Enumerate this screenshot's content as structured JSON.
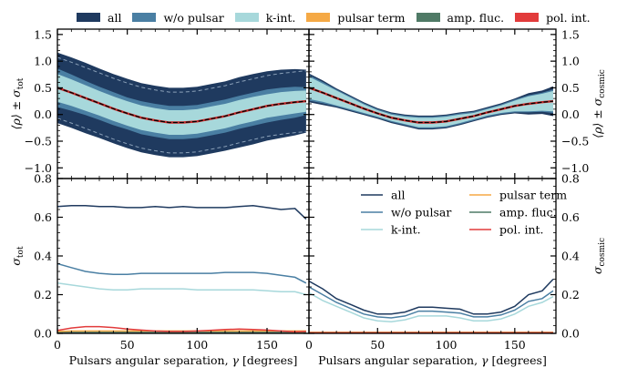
{
  "colors": {
    "all": "#1f3a5f",
    "wo_pulsar": "#4a7fa3",
    "k_int": "#a7d8db",
    "pulsar_term": "#f5a945",
    "amp_fluc": "#4f7a66",
    "pol_int": "#e23b3b",
    "mean": "#000000",
    "hd": "#cc2b2b"
  },
  "legend_top": [
    {
      "key": "all",
      "label": "all"
    },
    {
      "key": "wo_pulsar",
      "label": "w/o pulsar"
    },
    {
      "key": "k_int",
      "label": "k-int."
    },
    {
      "key": "pulsar_term",
      "label": "pulsar term"
    },
    {
      "key": "amp_fluc",
      "label": "amp. fluc."
    },
    {
      "key": "pol_int",
      "label": "pol. int."
    }
  ],
  "legend_inner": [
    {
      "key": "all",
      "label": "all"
    },
    {
      "key": "wo_pulsar",
      "label": "w/o pulsar"
    },
    {
      "key": "k_int",
      "label": "k-int."
    },
    {
      "key": "pulsar_term",
      "label": "pulsar term"
    },
    {
      "key": "amp_fluc",
      "label": "amp. fluc."
    },
    {
      "key": "pol_int",
      "label": "pol. int."
    }
  ],
  "chart_data": [
    {
      "id": "top-left",
      "type": "area",
      "ylabel": "⟨ρ⟩ ± σ_tot",
      "xlim": [
        0,
        180
      ],
      "ylim": [
        -1.2,
        1.6
      ],
      "yticks": [
        -1.0,
        -0.5,
        0.0,
        0.5,
        1.0,
        1.5
      ],
      "ytick_labels": [
        "−1.0",
        "−0.5",
        "0.0",
        "0.5",
        "1.0",
        "1.5"
      ],
      "x": [
        0,
        10,
        20,
        30,
        40,
        50,
        60,
        70,
        80,
        90,
        100,
        110,
        120,
        130,
        140,
        150,
        160,
        170,
        178
      ],
      "mean": [
        0.5,
        0.41,
        0.31,
        0.21,
        0.11,
        0.02,
        -0.06,
        -0.11,
        -0.15,
        -0.15,
        -0.13,
        -0.08,
        -0.03,
        0.04,
        0.1,
        0.16,
        0.2,
        0.23,
        0.25
      ],
      "series": [
        {
          "name": "all",
          "sigma": [
            0.66,
            0.66,
            0.66,
            0.65,
            0.65,
            0.65,
            0.65,
            0.65,
            0.65,
            0.65,
            0.65,
            0.65,
            0.65,
            0.66,
            0.66,
            0.65,
            0.64,
            0.62,
            0.59
          ]
        },
        {
          "name": "w/o pulsar",
          "sigma": [
            0.36,
            0.34,
            0.32,
            0.31,
            0.31,
            0.3,
            0.31,
            0.31,
            0.31,
            0.31,
            0.31,
            0.31,
            0.31,
            0.31,
            0.31,
            0.31,
            0.3,
            0.29,
            0.26
          ]
        },
        {
          "name": "k-int.",
          "sigma": [
            0.26,
            0.25,
            0.24,
            0.23,
            0.23,
            0.23,
            0.23,
            0.23,
            0.23,
            0.23,
            0.23,
            0.23,
            0.23,
            0.23,
            0.23,
            0.22,
            0.22,
            0.21,
            0.2
          ]
        }
      ]
    },
    {
      "id": "top-right",
      "type": "area",
      "ylabel": "⟨ρ⟩ ± σ_cosmic",
      "xlim": [
        0,
        180
      ],
      "ylim": [
        -1.2,
        1.6
      ],
      "yticks": [
        -1.0,
        -0.5,
        0.0,
        0.5,
        1.0,
        1.5
      ],
      "ytick_labels": [
        "−1.0",
        "−0.5",
        "0.0",
        "0.5",
        "1.0",
        "1.5"
      ],
      "x": [
        0,
        10,
        20,
        30,
        40,
        50,
        60,
        70,
        80,
        90,
        100,
        110,
        120,
        130,
        140,
        150,
        160,
        170,
        178
      ],
      "mean": [
        0.5,
        0.41,
        0.31,
        0.21,
        0.11,
        0.02,
        -0.06,
        -0.11,
        -0.15,
        -0.15,
        -0.13,
        -0.08,
        -0.03,
        0.04,
        0.1,
        0.16,
        0.2,
        0.23,
        0.25
      ],
      "series": [
        {
          "name": "all",
          "sigma": [
            0.27,
            0.23,
            0.18,
            0.15,
            0.12,
            0.1,
            0.1,
            0.11,
            0.13,
            0.13,
            0.13,
            0.12,
            0.1,
            0.1,
            0.11,
            0.14,
            0.2,
            0.22,
            0.28
          ]
        },
        {
          "name": "w/o pulsar",
          "sigma": [
            0.24,
            0.2,
            0.16,
            0.13,
            0.1,
            0.08,
            0.08,
            0.09,
            0.11,
            0.11,
            0.11,
            0.1,
            0.08,
            0.08,
            0.09,
            0.12,
            0.16,
            0.18,
            0.22
          ]
        },
        {
          "name": "k-int.",
          "sigma": [
            0.21,
            0.17,
            0.14,
            0.11,
            0.08,
            0.06,
            0.06,
            0.07,
            0.09,
            0.09,
            0.09,
            0.08,
            0.06,
            0.06,
            0.07,
            0.1,
            0.14,
            0.16,
            0.19
          ]
        }
      ]
    },
    {
      "id": "bottom-left",
      "type": "line",
      "ylabel": "σ_tot",
      "xlabel": "Pulsars angular separation, γ [degrees]",
      "xlim": [
        0,
        180
      ],
      "ylim": [
        0.0,
        0.8
      ],
      "yticks": [
        0.0,
        0.2,
        0.4,
        0.6,
        0.8
      ],
      "ytick_labels": [
        "0.0",
        "0.2",
        "0.4",
        "0.6",
        "0.8"
      ],
      "xticks": [
        0,
        50,
        100,
        150
      ],
      "xtick_labels": [
        "0",
        "50",
        "100",
        "150"
      ],
      "x": [
        0,
        10,
        20,
        30,
        40,
        50,
        60,
        70,
        80,
        90,
        100,
        110,
        120,
        130,
        140,
        150,
        160,
        170,
        178
      ],
      "series": [
        {
          "name": "all",
          "values": [
            0.655,
            0.66,
            0.66,
            0.655,
            0.655,
            0.65,
            0.65,
            0.655,
            0.65,
            0.655,
            0.65,
            0.65,
            0.65,
            0.655,
            0.66,
            0.65,
            0.64,
            0.645,
            0.59
          ]
        },
        {
          "name": "w/o pulsar",
          "values": [
            0.36,
            0.34,
            0.32,
            0.31,
            0.305,
            0.305,
            0.31,
            0.31,
            0.31,
            0.31,
            0.31,
            0.31,
            0.315,
            0.315,
            0.315,
            0.31,
            0.3,
            0.29,
            0.26
          ]
        },
        {
          "name": "k-int.",
          "values": [
            0.26,
            0.25,
            0.24,
            0.23,
            0.225,
            0.225,
            0.23,
            0.23,
            0.23,
            0.23,
            0.225,
            0.225,
            0.225,
            0.225,
            0.225,
            0.22,
            0.215,
            0.215,
            0.2
          ]
        },
        {
          "name": "amp. fluc.",
          "values": [
            0.005,
            0.005,
            0.005,
            0.005,
            0.005,
            0.005,
            0.005,
            0.005,
            0.005,
            0.005,
            0.005,
            0.005,
            0.005,
            0.005,
            0.005,
            0.005,
            0.005,
            0.005,
            0.005
          ]
        },
        {
          "name": "pulsar term",
          "values": [
            0.01,
            0.012,
            0.012,
            0.012,
            0.012,
            0.012,
            0.012,
            0.012,
            0.012,
            0.012,
            0.012,
            0.012,
            0.012,
            0.012,
            0.012,
            0.012,
            0.012,
            0.012,
            0.012
          ]
        },
        {
          "name": "pol. int.",
          "values": [
            0.015,
            0.028,
            0.035,
            0.035,
            0.03,
            0.022,
            0.017,
            0.012,
            0.01,
            0.01,
            0.012,
            0.016,
            0.02,
            0.022,
            0.02,
            0.017,
            0.012,
            0.008,
            0.01
          ]
        }
      ]
    },
    {
      "id": "bottom-right",
      "type": "line",
      "ylabel": "σ_cosmic",
      "xlabel": "Pulsars angular separation, γ [degrees]",
      "xlim": [
        0,
        180
      ],
      "ylim": [
        0.0,
        0.8
      ],
      "yticks": [
        0.0,
        0.2,
        0.4,
        0.6,
        0.8
      ],
      "ytick_labels": [
        "0.0",
        "0.2",
        "0.4",
        "0.6",
        "0.8"
      ],
      "xticks": [
        0,
        50,
        100,
        150
      ],
      "xtick_labels": [
        "0",
        "50",
        "100",
        "150"
      ],
      "x": [
        0,
        10,
        20,
        30,
        40,
        50,
        60,
        70,
        80,
        90,
        100,
        110,
        120,
        130,
        140,
        150,
        160,
        170,
        178
      ],
      "series": [
        {
          "name": "all",
          "values": [
            0.27,
            0.23,
            0.18,
            0.15,
            0.12,
            0.1,
            0.1,
            0.11,
            0.135,
            0.135,
            0.13,
            0.125,
            0.1,
            0.1,
            0.11,
            0.14,
            0.2,
            0.22,
            0.28
          ]
        },
        {
          "name": "w/o pulsar",
          "values": [
            0.24,
            0.2,
            0.16,
            0.13,
            0.1,
            0.085,
            0.08,
            0.09,
            0.115,
            0.115,
            0.11,
            0.105,
            0.085,
            0.085,
            0.095,
            0.12,
            0.165,
            0.18,
            0.22
          ]
        },
        {
          "name": "k-int.",
          "values": [
            0.21,
            0.17,
            0.14,
            0.11,
            0.08,
            0.065,
            0.06,
            0.07,
            0.09,
            0.09,
            0.09,
            0.08,
            0.065,
            0.065,
            0.075,
            0.1,
            0.14,
            0.16,
            0.19
          ]
        },
        {
          "name": "amp. fluc.",
          "values": [
            0.005,
            0.005,
            0.005,
            0.005,
            0.005,
            0.005,
            0.005,
            0.005,
            0.005,
            0.005,
            0.005,
            0.005,
            0.005,
            0.005,
            0.005,
            0.005,
            0.005,
            0.005,
            0.005
          ]
        },
        {
          "name": "pulsar term",
          "values": [
            0.005,
            0.005,
            0.005,
            0.005,
            0.005,
            0.005,
            0.005,
            0.005,
            0.005,
            0.005,
            0.005,
            0.005,
            0.005,
            0.005,
            0.005,
            0.005,
            0.005,
            0.005,
            0.005
          ]
        },
        {
          "name": "pol. int.",
          "values": [
            0.003,
            0.003,
            0.003,
            0.003,
            0.003,
            0.003,
            0.003,
            0.003,
            0.003,
            0.003,
            0.003,
            0.003,
            0.003,
            0.003,
            0.003,
            0.003,
            0.003,
            0.003,
            0.003
          ]
        }
      ]
    }
  ]
}
